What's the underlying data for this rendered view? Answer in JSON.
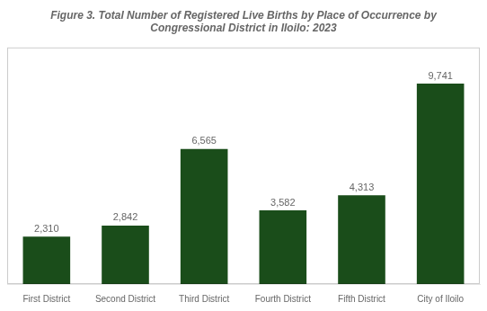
{
  "chart_data": {
    "type": "bar",
    "title": "Figure 3. Total Number of Registered Live Births by Place of Occurrence by\nCongressional District in Iloilo: 2023",
    "categories": [
      "First District",
      "Second District",
      "Third District",
      "Fourth District",
      "Fifth District",
      "City of Iloilo"
    ],
    "values": [
      2310,
      2842,
      6565,
      3582,
      4313,
      9741
    ],
    "value_labels": [
      "2,310",
      "2,842",
      "6,565",
      "3,582",
      "4,313",
      "9,741"
    ],
    "data_labels": true,
    "color": "#1a4d1a",
    "ylim": [
      0,
      11500
    ],
    "tick_labels": "x",
    "grid": false
  }
}
